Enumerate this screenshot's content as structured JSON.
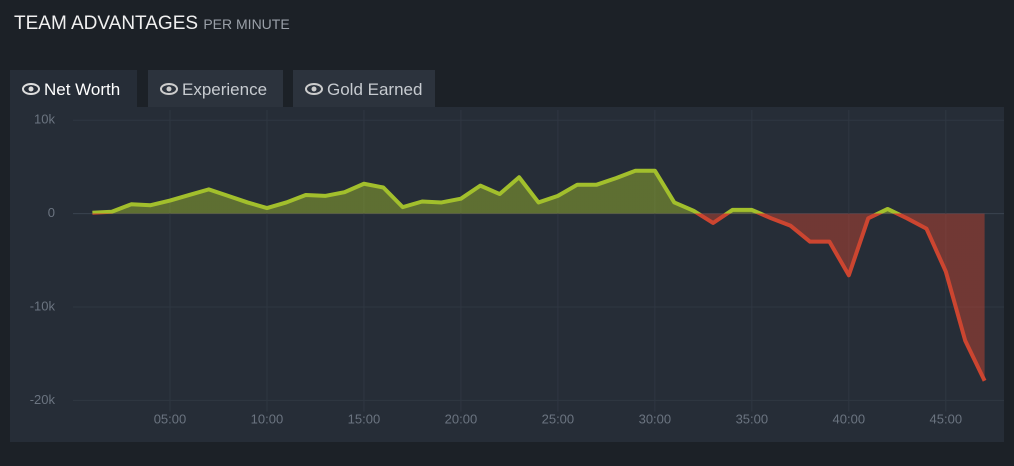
{
  "header": {
    "title": "TEAM ADVANTAGES",
    "subtitle": "PER MINUTE"
  },
  "tabs": [
    "Net Worth",
    "Experience",
    "Gold Earned"
  ],
  "chart_data": {
    "type": "area",
    "x": [
      1,
      2,
      3,
      4,
      5,
      6,
      7,
      8,
      9,
      10,
      11,
      12,
      13,
      14,
      15,
      16,
      17,
      18,
      19,
      20,
      21,
      22,
      23,
      24,
      25,
      26,
      27,
      28,
      29,
      30,
      31,
      32,
      33,
      34,
      35,
      36,
      37,
      38,
      39,
      40,
      41,
      42,
      43,
      44,
      45,
      46,
      47
    ],
    "values": [
      100,
      200,
      1000,
      900,
      1400,
      2000,
      2600,
      1900,
      1200,
      600,
      1200,
      2000,
      1900,
      2300,
      3200,
      2800,
      700,
      1300,
      1200,
      1600,
      3000,
      2100,
      3900,
      1200,
      1900,
      3100,
      3100,
      3800,
      4600,
      4600,
      1200,
      300,
      -1000,
      400,
      400,
      -500,
      -1300,
      -3000,
      -3000,
      -6600,
      -500,
      500,
      -500,
      -1600,
      -6200,
      -13600,
      -17900
    ],
    "color": {
      "positive": "#a2bf2c",
      "negative": "#cc4530"
    },
    "xlim": [
      0,
      48
    ],
    "xticks": [
      {
        "value": 5,
        "label": "05:00"
      },
      {
        "value": 10,
        "label": "10:00"
      },
      {
        "value": 15,
        "label": "15:00"
      },
      {
        "value": 20,
        "label": "20:00"
      },
      {
        "value": 25,
        "label": "25:00"
      },
      {
        "value": 30,
        "label": "30:00"
      },
      {
        "value": 35,
        "label": "35:00"
      },
      {
        "value": 40,
        "label": "40:00"
      },
      {
        "value": 45,
        "label": "45:00"
      }
    ],
    "ylim": [
      -21200,
      11100
    ],
    "yticks": [
      {
        "value": 10000,
        "label": "10k"
      },
      0,
      {
        "value": -10000,
        "label": "-10k"
      },
      {
        "value": -20000,
        "label": "-20k"
      }
    ],
    "grid": true
  }
}
